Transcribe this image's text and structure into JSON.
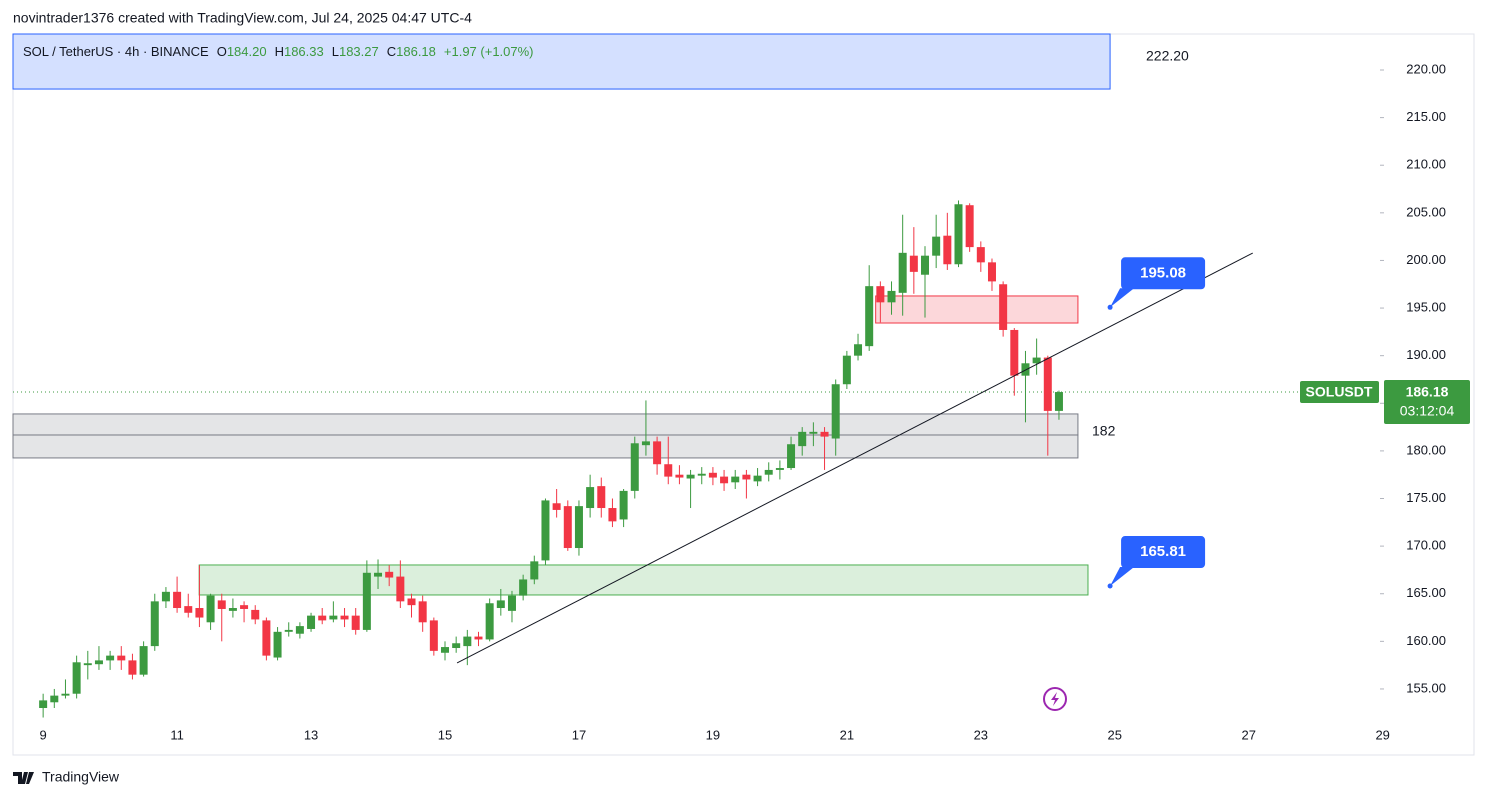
{
  "header": "novintrader1376 created with TradingView.com, Jul 24, 2025 04:47 UTC-4",
  "footer": "TradingView",
  "chart_data": {
    "type": "candlestick",
    "legend": {
      "symbol": "SOL / TetherUS · 4h · BINANCE",
      "fields": [
        {
          "label": "O",
          "value": "184.20"
        },
        {
          "label": "H",
          "value": "186.33"
        },
        {
          "label": "L",
          "value": "183.27"
        },
        {
          "label": "C",
          "value": "186.18"
        }
      ],
      "change": "+1.97 (+1.07%)"
    },
    "up_color": "#3c9a40",
    "down_color": "#f23645",
    "x": [
      9,
      9.1667,
      9.3333,
      9.5,
      9.6667,
      9.8333,
      10,
      10.1667,
      10.3333,
      10.5,
      10.6667,
      10.8333,
      11,
      11.1667,
      11.3333,
      11.5,
      11.6667,
      11.8333,
      12,
      12.1667,
      12.3333,
      12.5,
      12.6667,
      12.8333,
      13,
      13.1667,
      13.3333,
      13.5,
      13.6667,
      13.8333,
      14,
      14.1667,
      14.3333,
      14.5,
      14.6667,
      14.8333,
      15,
      15.1667,
      15.3333,
      15.5,
      15.6667,
      15.8333,
      16,
      16.1667,
      16.3333,
      16.5,
      16.6667,
      16.8333,
      17,
      17.1667,
      17.3333,
      17.5,
      17.6667,
      17.8333,
      18,
      18.1667,
      18.3333,
      18.5,
      18.6667,
      18.8333,
      19,
      19.1667,
      19.3333,
      19.5,
      19.6667,
      19.8333,
      20,
      20.1667,
      20.3333,
      20.5,
      20.6667,
      20.8333,
      21,
      21.1667,
      21.3333,
      21.5,
      21.6667,
      21.8333,
      22,
      22.1667,
      22.3333,
      22.5,
      22.6667,
      22.8333,
      23,
      23.1667,
      23.3333,
      23.5,
      23.6667,
      23.8333,
      24,
      24.1667
    ],
    "open": [
      153,
      153.6,
      154.3,
      154.5,
      157.5,
      157.6,
      158,
      158.5,
      158,
      156.5,
      159.5,
      164.2,
      165.2,
      163.7,
      163.5,
      162,
      164.3,
      163.2,
      163.8,
      163.3,
      162.2,
      158.3,
      161,
      160.8,
      161.3,
      162.7,
      162.3,
      162.7,
      162.7,
      161.2,
      166.8,
      167.3,
      166.8,
      164.5,
      164.2,
      162.2,
      158.8,
      159.3,
      159.5,
      160.5,
      160.2,
      163.5,
      163.2,
      164.8,
      166.5,
      168.5,
      174.5,
      174.2,
      169.8,
      174,
      176.3,
      174,
      172.8,
      175.8,
      180.6,
      181,
      178.6,
      177.5,
      177.1,
      177.4,
      177.7,
      177.3,
      176.7,
      177.5,
      176.8,
      177.5,
      178,
      178.2,
      180.5,
      181.8,
      182,
      181.3,
      187,
      190,
      191,
      197.3,
      195.6,
      196.6,
      200.5,
      198.5,
      200.5,
      202.6,
      199.6,
      205.8,
      201.4,
      199.8,
      197.5,
      192.7,
      187.9,
      189.2,
      189.8,
      184.2
    ],
    "high": [
      154.5,
      155,
      156,
      158.5,
      159,
      159.5,
      159,
      159.5,
      158.7,
      160,
      165,
      165.7,
      166.8,
      165,
      168,
      165,
      165,
      164.5,
      164.2,
      163.8,
      162.5,
      161.5,
      162,
      162,
      163,
      163.5,
      164.2,
      163.5,
      163.5,
      168.5,
      168.6,
      168,
      168.5,
      165,
      164.8,
      162.5,
      160,
      160.5,
      161.2,
      161,
      164.5,
      165.5,
      165.3,
      167,
      169,
      175,
      176,
      174.8,
      174.8,
      177.5,
      177.2,
      175,
      176,
      181.5,
      185.3,
      181.5,
      181.5,
      178.5,
      178,
      178.3,
      178.3,
      178,
      178,
      178,
      178.2,
      178.8,
      179,
      181.5,
      182.5,
      183,
      182.5,
      187.5,
      190.5,
      192.3,
      199.5,
      197.8,
      197.8,
      204.8,
      203.5,
      201.5,
      204.8,
      205,
      206.3,
      206,
      202,
      200.2,
      197.8,
      192.9,
      190.5,
      191.8,
      190,
      186.33
    ],
    "low": [
      152,
      153,
      154,
      154,
      156,
      157,
      157,
      157,
      156,
      156.3,
      159,
      163.5,
      163,
      162.5,
      161.5,
      161.2,
      160,
      162.5,
      162,
      161.8,
      158,
      158,
      160.5,
      160.3,
      161,
      161.8,
      162,
      161.5,
      160.7,
      161,
      165.5,
      165.8,
      163.5,
      162.5,
      161,
      158.5,
      158,
      158.8,
      157.5,
      159.5,
      160,
      162.7,
      162,
      164.3,
      166,
      168,
      173,
      169.5,
      169,
      173,
      173,
      172,
      172,
      175,
      179.5,
      177.5,
      176.5,
      176.5,
      174,
      176.5,
      176.4,
      175.8,
      176,
      175,
      176.3,
      176.8,
      177,
      178,
      179.5,
      180.5,
      178,
      179.5,
      186.5,
      189.5,
      190.5,
      193.5,
      194.3,
      194.2,
      196.5,
      194,
      199.2,
      199,
      199.3,
      200.9,
      198.8,
      196.8,
      192,
      185.8,
      183,
      188,
      179.5,
      183.27
    ],
    "close": [
      153.8,
      154.3,
      154.5,
      157.8,
      157.7,
      158,
      158.5,
      158,
      156.5,
      159.5,
      164.2,
      165.2,
      163.5,
      163,
      162.5,
      164.8,
      163.4,
      163.5,
      163.4,
      162.3,
      158.5,
      161,
      161.2,
      161.6,
      162.7,
      162.2,
      162.7,
      162.3,
      161.2,
      167.2,
      167.2,
      166.7,
      164.2,
      163.8,
      162,
      159,
      159.4,
      159.8,
      160.5,
      160.2,
      164,
      164.3,
      164.8,
      166.5,
      168.4,
      174.8,
      173.8,
      169.8,
      174.2,
      176.2,
      174,
      172.6,
      175.8,
      180.8,
      181,
      178.6,
      177.3,
      177.2,
      177.5,
      177.6,
      177.2,
      176.6,
      177.3,
      177,
      177.4,
      178,
      178.2,
      180.7,
      182,
      182,
      181.5,
      187,
      190,
      191.2,
      197.3,
      195.6,
      196.8,
      200.8,
      198.8,
      200.5,
      202.5,
      199.6,
      205.9,
      201.4,
      199.8,
      197.8,
      192.7,
      187.9,
      189.2,
      189.8,
      184.2,
      186.18
    ],
    "xlim": [
      8.55,
      28.96
    ],
    "ylim": [
      151.53,
      223.78
    ],
    "xticks": [
      9,
      11,
      13,
      15,
      17,
      19,
      21,
      23,
      25,
      27,
      29
    ],
    "yticks": [
      {
        "value": 155,
        "label": "155.00"
      },
      {
        "value": 160,
        "label": "160.00"
      },
      {
        "value": 165,
        "label": "165.00"
      },
      {
        "value": 170,
        "label": "170.00"
      },
      {
        "value": 175,
        "label": "175.00"
      },
      {
        "value": 180,
        "label": "180.00"
      },
      {
        "value": 185,
        "label": "185.00"
      },
      {
        "value": 190,
        "label": "190.00"
      },
      {
        "value": 195,
        "label": "195.00"
      },
      {
        "value": 200,
        "label": "200.00"
      },
      {
        "value": 205,
        "label": "205.00"
      },
      {
        "value": 210,
        "label": "210.00"
      },
      {
        "value": 215,
        "label": "215.00"
      },
      {
        "value": 220,
        "label": "220.00"
      }
    ],
    "zones": [
      {
        "color": "#2962ff",
        "x": [
          8.55,
          24.93
        ],
        "y": [
          218.0,
          223.78
        ]
      },
      {
        "color": "#787b86",
        "x": [
          8.55,
          24.45
        ],
        "y": [
          181.67,
          183.88
        ]
      },
      {
        "color": "#787b86",
        "x": [
          8.55,
          24.45
        ],
        "y": [
          179.26,
          181.67
        ]
      },
      {
        "color": "#f23645",
        "x": [
          21.43,
          24.45
        ],
        "y": [
          193.43,
          196.27
        ]
      },
      {
        "color": "#4caf50",
        "x": [
          11.33,
          24.6
        ],
        "y": [
          164.87,
          168.02
        ]
      }
    ],
    "trendline": {
      "x": [
        15.18,
        27.06
      ],
      "y": [
        157.73,
        200.78
      ]
    },
    "top_label": "222.20",
    "level_label": {
      "value": 182,
      "label": "182"
    },
    "callouts": [
      {
        "x": 24.93,
        "value": 195.08,
        "label": "195.08"
      },
      {
        "x": 24.93,
        "value": 165.81,
        "label": "165.81"
      }
    ],
    "last_price": {
      "symbol": "SOLUSDT",
      "value": 186.18,
      "label": "186.18",
      "countdown": "03:12:04"
    }
  }
}
